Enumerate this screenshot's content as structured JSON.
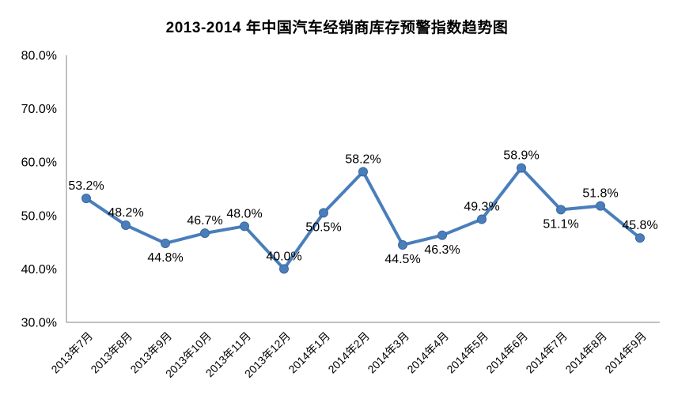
{
  "page": {
    "background": "#ffffff"
  },
  "chart_data": {
    "type": "line",
    "title": "2013-2014 年中国汽车经销商库存预警指数趋势图",
    "categories": [
      "2013年7月",
      "2013年8月",
      "2013年9月",
      "2013年10月",
      "2013年11月",
      "2013年12月",
      "2014年1月",
      "2014年2月",
      "2014年3月",
      "2014年4月",
      "2014年5月",
      "2014年6月",
      "2014年7月",
      "2014年8月",
      "2014年9月"
    ],
    "values": [
      53.2,
      48.2,
      44.8,
      46.7,
      48.0,
      40.0,
      50.5,
      58.2,
      44.5,
      46.3,
      49.3,
      58.9,
      51.1,
      51.8,
      45.8
    ],
    "data_labels": [
      "53.2%",
      "48.2%",
      "44.8%",
      "46.7%",
      "48.0%",
      "40.0%",
      "50.5%",
      "58.2%",
      "44.5%",
      "46.3%",
      "49.3%",
      "58.9%",
      "51.1%",
      "51.8%",
      "45.8%"
    ],
    "label_positions": [
      "above",
      "above",
      "below",
      "above",
      "above",
      "above",
      "below",
      "above",
      "below",
      "below",
      "above",
      "above",
      "below",
      "above",
      "above"
    ],
    "xlabel": "",
    "ylabel": "",
    "ylim": [
      30,
      80
    ],
    "y_tick_labels": [
      "80.0%",
      "70.0%",
      "60.0%",
      "50.0%",
      "40.0%",
      "30.0%"
    ],
    "y_tick_values": [
      80,
      70,
      60,
      50,
      40,
      30
    ],
    "grid": false,
    "legend": false,
    "line_color": "#4A7EBB",
    "marker_color": "#4A7EBB",
    "marker_edge_color": "#39689E",
    "axis_line_color": "#808080",
    "text_color": "#000000"
  }
}
